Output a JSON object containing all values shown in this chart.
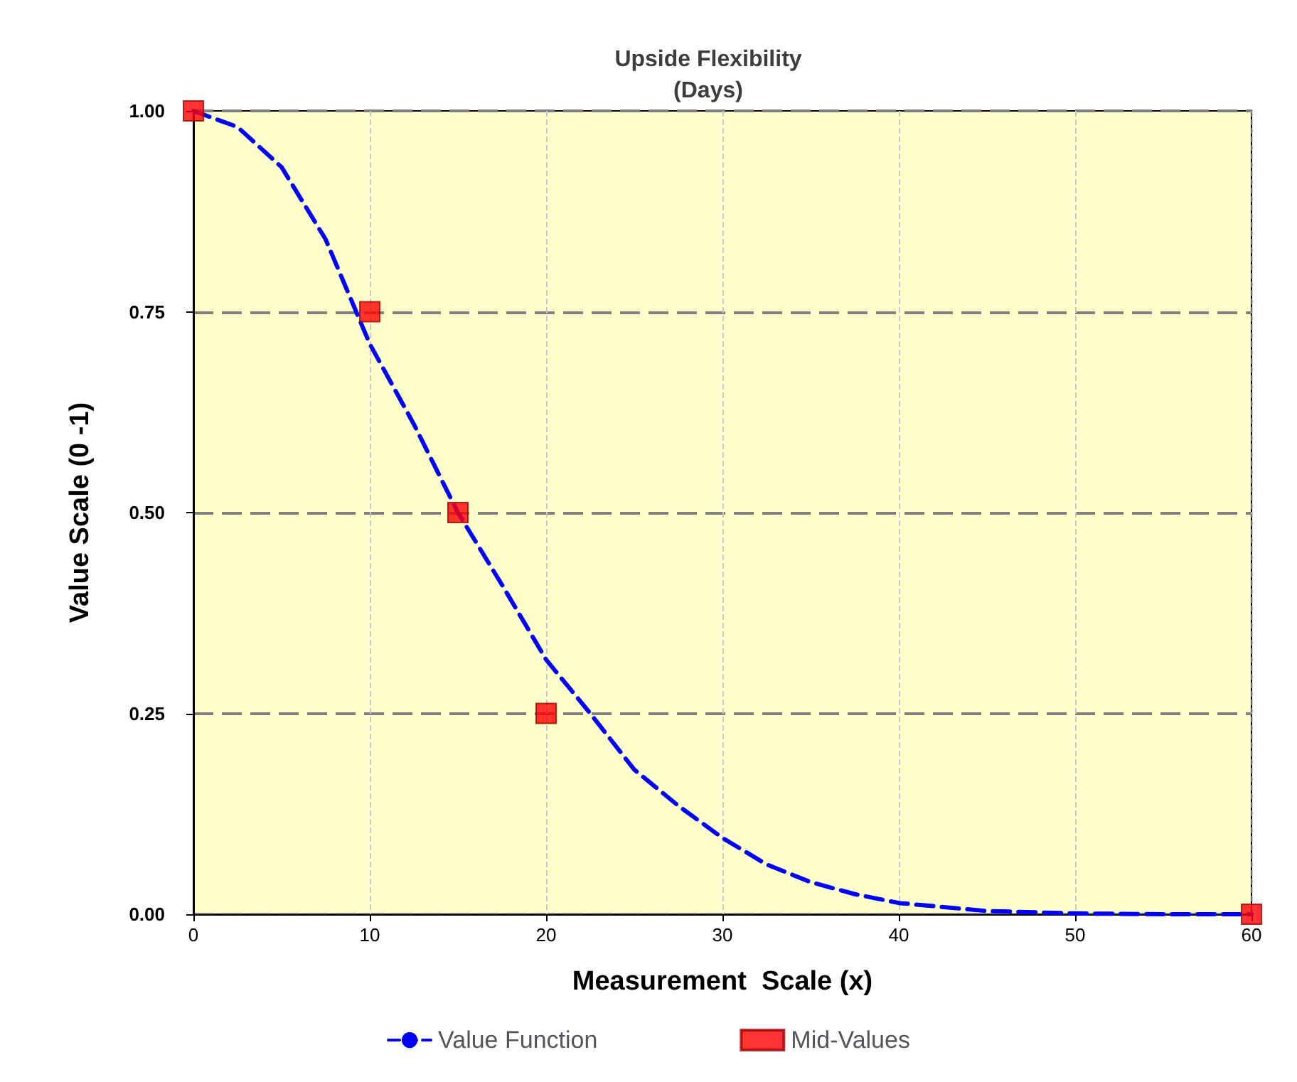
{
  "chart_data": {
    "type": "line",
    "title": "Upside Flexibility\n(Days)",
    "xlabel": "Measurement  Scale (x)",
    "ylabel": "Value Scale (0 -1)",
    "xlim": [
      0,
      60
    ],
    "xticks": [
      0,
      10,
      20,
      30,
      40,
      50,
      60
    ],
    "ylim": [
      0,
      1
    ],
    "yticks": [
      {
        "value": 0,
        "label": "0.00"
      },
      {
        "value": 0.25,
        "label": "0.25"
      },
      {
        "value": 0.5,
        "label": "0.50"
      },
      {
        "value": 0.75,
        "label": "0.75"
      },
      {
        "value": 1,
        "label": "1.00"
      }
    ],
    "grid": true,
    "legend": "bottom",
    "series": [
      {
        "name": "Value Function",
        "color": "#0000ff",
        "line_style": "dashed",
        "marker": "none",
        "x": [
          0,
          2.5,
          5,
          7.5,
          10,
          12.5,
          15,
          17.5,
          20,
          22.5,
          25,
          27.5,
          30,
          32.5,
          35,
          37.5,
          40,
          45,
          50,
          55,
          60
        ],
        "values": [
          1,
          0.98,
          0.93,
          0.84,
          0.71,
          0.61,
          0.5,
          0.41,
          0.317,
          0.25,
          0.18,
          0.135,
          0.095,
          0.062,
          0.04,
          0.025,
          0.014,
          0.004,
          0.001,
          0,
          0
        ]
      },
      {
        "name": "Mid-Values",
        "type": "scatter",
        "color": "#ff0000",
        "marker": "square",
        "x": [
          0,
          10,
          15,
          20,
          60
        ],
        "values": [
          1,
          0.75,
          0.5,
          0.25,
          0
        ]
      }
    ]
  }
}
